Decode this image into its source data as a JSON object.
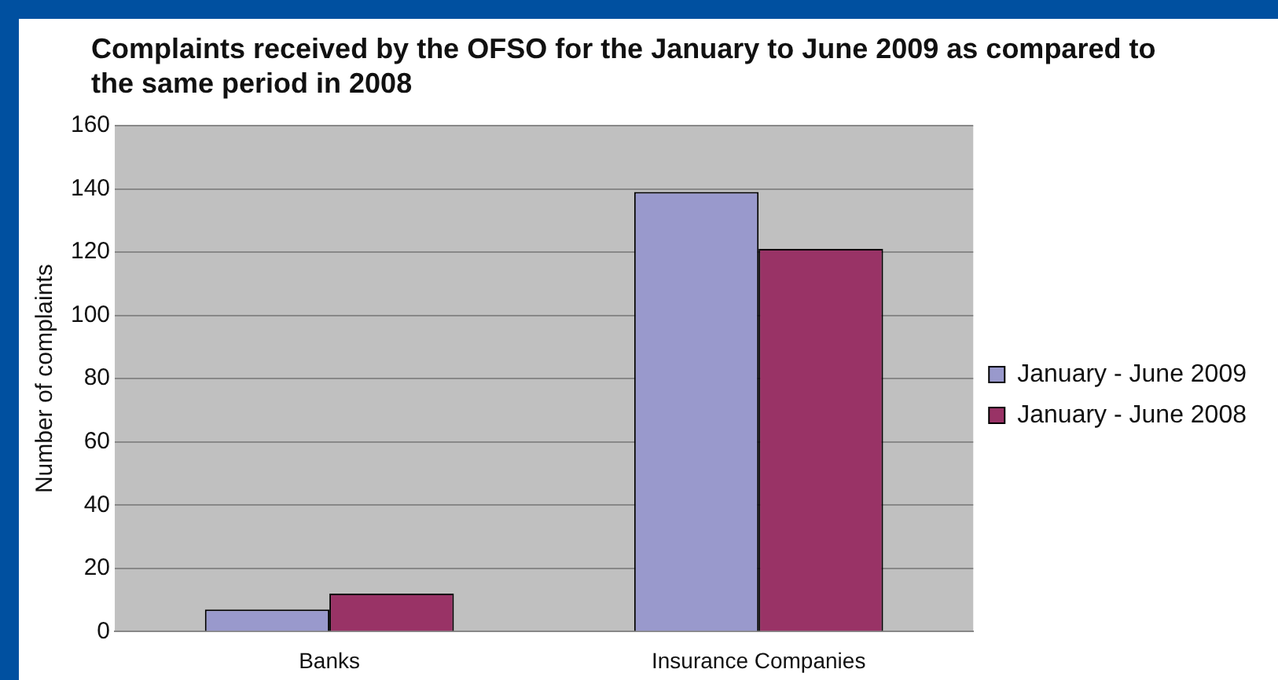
{
  "chart_data": {
    "type": "bar",
    "title": "Complaints received by the OFSO for the January to June 2009 as compared to the same period in 2008",
    "ylabel": "Number of complaints",
    "categories": [
      "Banks",
      "Insurance Companies"
    ],
    "series": [
      {
        "name": "January - June 2009",
        "color": "#9999cc",
        "values": [
          7,
          139
        ]
      },
      {
        "name": "January - June 2008",
        "color": "#993366",
        "values": [
          12,
          121
        ]
      }
    ],
    "ylim": [
      0,
      160
    ],
    "yticks": [
      0,
      20,
      40,
      60,
      80,
      100,
      120,
      140,
      160
    ],
    "grid": "y",
    "legend": "right"
  }
}
